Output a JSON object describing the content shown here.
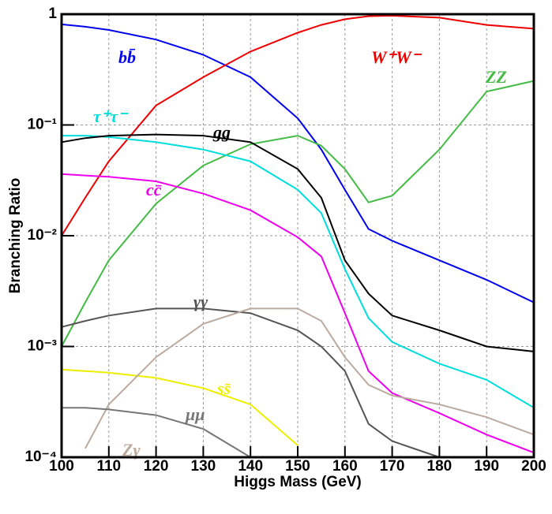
{
  "chart_data": {
    "type": "line",
    "x_label": "Higgs Mass (GeV)",
    "y_label": "Branching Ratio",
    "x": [
      100,
      105,
      110,
      120,
      130,
      140,
      150,
      155,
      160,
      165,
      170,
      180,
      190,
      200
    ],
    "xlim": [
      100,
      200
    ],
    "xticks": [
      100,
      110,
      120,
      130,
      140,
      150,
      160,
      170,
      180,
      190,
      200
    ],
    "ylim": [
      0.0001,
      1
    ],
    "log_y": true,
    "grid": true,
    "yticks": [
      {
        "value": 0.0001,
        "label": "10⁻⁴"
      },
      {
        "value": 0.001,
        "label": "10⁻³"
      },
      {
        "value": 0.01,
        "label": "10⁻²"
      },
      {
        "value": 0.1,
        "label": "10⁻¹"
      },
      1
    ],
    "series": [
      {
        "name": "bb̄",
        "color": "#0000ee",
        "values": [
          0.81,
          0.77,
          0.72,
          0.59,
          0.43,
          0.27,
          0.115,
          0.06,
          0.026,
          0.0115,
          0.009,
          0.006,
          0.004,
          0.0025
        ]
      },
      {
        "name": "W⁺W⁻",
        "color": "#ee0000",
        "values": [
          0.01,
          0.022,
          0.047,
          0.15,
          0.27,
          0.46,
          0.68,
          0.8,
          0.9,
          0.96,
          0.97,
          0.93,
          0.8,
          0.74
        ]
      },
      {
        "name": "ZZ",
        "color": "#44bb44",
        "values": [
          0.001,
          0.0025,
          0.006,
          0.0195,
          0.043,
          0.067,
          0.08,
          0.065,
          0.04,
          0.02,
          0.023,
          0.06,
          0.2,
          0.25
        ]
      },
      {
        "name": "τ⁺τ⁻",
        "color": "#00dddd",
        "values": [
          0.08,
          0.08,
          0.078,
          0.07,
          0.06,
          0.047,
          0.026,
          0.016,
          0.005,
          0.0018,
          0.0011,
          0.0007,
          0.0005,
          0.00028
        ]
      },
      {
        "name": "gg",
        "color": "#000000",
        "values": [
          0.07,
          0.076,
          0.08,
          0.082,
          0.08,
          0.07,
          0.04,
          0.022,
          0.006,
          0.003,
          0.0019,
          0.0014,
          0.001,
          0.0009
        ]
      },
      {
        "name": "cc̄",
        "color": "#ee00ee",
        "values": [
          0.036,
          0.035,
          0.034,
          0.031,
          0.024,
          0.017,
          0.0097,
          0.0065,
          0.002,
          0.0006,
          0.00038,
          0.00025,
          0.00016,
          0.00011
        ]
      },
      {
        "name": "γγ",
        "color": "#555555",
        "values": [
          0.0015,
          0.0017,
          0.0019,
          0.0022,
          0.0022,
          0.002,
          0.0014,
          0.001,
          0.0006,
          0.0002,
          0.00014,
          0.0001,
          null,
          null
        ]
      },
      {
        "name": "ss̄",
        "color": "#eeee00",
        "values": [
          0.00062,
          0.0006,
          0.00058,
          0.00052,
          0.00042,
          0.0003,
          0.000128,
          null,
          null,
          null,
          null,
          null,
          null,
          null
        ]
      },
      {
        "name": "Zγ",
        "color": "#bbaaa0",
        "values": [
          null,
          0.00012,
          0.0003,
          0.0008,
          0.0016,
          0.0022,
          0.0022,
          0.0017,
          0.0008,
          0.00045,
          0.00036,
          0.0003,
          0.00023,
          0.00016
        ]
      },
      {
        "name": "μμ",
        "color": "#777777",
        "values": [
          0.00028,
          0.00028,
          0.00027,
          0.00024,
          0.00018,
          0.0001,
          null,
          null,
          null,
          null,
          null,
          null,
          null,
          null
        ]
      }
    ]
  }
}
